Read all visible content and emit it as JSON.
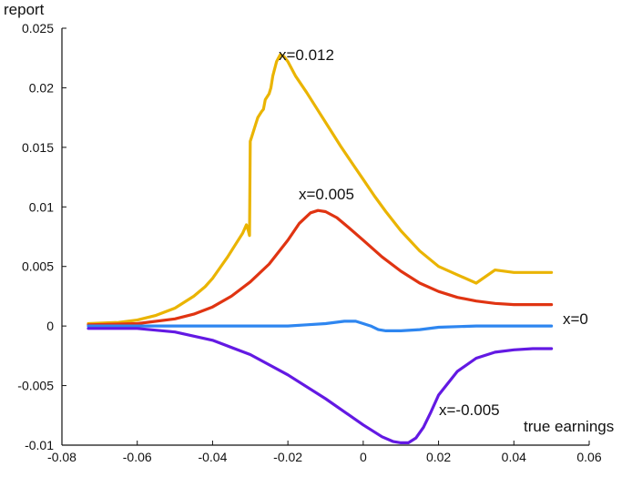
{
  "chart_data": {
    "type": "line",
    "title": "",
    "xlabel": "true earnings",
    "ylabel": "report",
    "xlim": [
      -0.08,
      0.06
    ],
    "ylim": [
      -0.01,
      0.025
    ],
    "xticks": [
      "-0.08",
      "-0.06",
      "-0.04",
      "-0.02",
      "0",
      "0.02",
      "0.04",
      "0.06"
    ],
    "yticks": [
      "-0.01",
      "-0.005",
      "0",
      "0.005",
      "0.01",
      "0.015",
      "0.02",
      "0.025"
    ],
    "grid": false,
    "legend": "none",
    "series": [
      {
        "name": "x=0.012",
        "color": "#EAB400",
        "x": [
          -0.073,
          -0.065,
          -0.06,
          -0.055,
          -0.05,
          -0.045,
          -0.042,
          -0.04,
          -0.038,
          -0.036,
          -0.034,
          -0.032,
          -0.031,
          -0.0305,
          -0.0302,
          -0.03,
          -0.0295,
          -0.0285,
          -0.028,
          -0.027,
          -0.0265,
          -0.026,
          -0.025,
          -0.0245,
          -0.024,
          -0.023,
          -0.022,
          -0.021,
          -0.02,
          -0.018,
          -0.015,
          -0.012,
          -0.009,
          -0.006,
          -0.003,
          0.0,
          0.003,
          0.006,
          0.01,
          0.015,
          0.02,
          0.025,
          0.03,
          0.035,
          0.04,
          0.045,
          0.05
        ],
        "y": [
          0.0002,
          0.0003,
          0.0005,
          0.0009,
          0.0015,
          0.0025,
          0.0033,
          0.004,
          0.0049,
          0.0058,
          0.0068,
          0.0078,
          0.0085,
          0.008,
          0.0076,
          0.0155,
          0.016,
          0.017,
          0.0175,
          0.018,
          0.0182,
          0.019,
          0.0195,
          0.02,
          0.021,
          0.0222,
          0.0228,
          0.0226,
          0.0222,
          0.021,
          0.0196,
          0.0181,
          0.0166,
          0.0151,
          0.0137,
          0.0123,
          0.0109,
          0.0096,
          0.008,
          0.0063,
          0.005,
          0.0043,
          0.0036,
          0.0047,
          0.0045,
          0.0045,
          0.0045
        ]
      },
      {
        "name": "x=0.005",
        "color": "#E03412",
        "x": [
          -0.073,
          -0.06,
          -0.05,
          -0.045,
          -0.04,
          -0.035,
          -0.03,
          -0.025,
          -0.02,
          -0.017,
          -0.014,
          -0.012,
          -0.01,
          -0.007,
          -0.004,
          0.0,
          0.005,
          0.01,
          0.015,
          0.02,
          0.025,
          0.03,
          0.035,
          0.04,
          0.045,
          0.05
        ],
        "y": [
          0.0001,
          0.0002,
          0.0006,
          0.001,
          0.0016,
          0.0025,
          0.0037,
          0.0052,
          0.0072,
          0.0086,
          0.0095,
          0.0097,
          0.0096,
          0.0091,
          0.0083,
          0.0072,
          0.0058,
          0.0046,
          0.0036,
          0.0029,
          0.0024,
          0.0021,
          0.0019,
          0.0018,
          0.0018,
          0.0018
        ]
      },
      {
        "name": "x=0",
        "color": "#2E86F0",
        "x": [
          -0.073,
          -0.06,
          -0.04,
          -0.02,
          -0.015,
          -0.01,
          -0.005,
          -0.002,
          0.0,
          0.002,
          0.004,
          0.006,
          0.01,
          0.015,
          0.02,
          0.03,
          0.04,
          0.05
        ],
        "y": [
          0.0,
          0.0,
          0.0,
          0.0,
          0.0001,
          0.0002,
          0.0004,
          0.0004,
          0.0002,
          0.0,
          -0.0003,
          -0.0004,
          -0.0004,
          -0.0003,
          -0.0001,
          0.0,
          0.0,
          0.0
        ]
      },
      {
        "name": "x=-0.005",
        "color": "#6319E3",
        "x": [
          -0.073,
          -0.06,
          -0.05,
          -0.04,
          -0.03,
          -0.02,
          -0.01,
          0.0,
          0.005,
          0.008,
          0.01,
          0.012,
          0.014,
          0.016,
          0.018,
          0.02,
          0.025,
          0.03,
          0.035,
          0.04,
          0.045,
          0.05
        ],
        "y": [
          -0.0002,
          -0.0002,
          -0.0005,
          -0.0012,
          -0.0024,
          -0.0041,
          -0.0061,
          -0.0083,
          -0.0093,
          -0.0097,
          -0.0098,
          -0.0098,
          -0.0094,
          -0.0085,
          -0.0072,
          -0.0058,
          -0.0038,
          -0.0027,
          -0.0022,
          -0.002,
          -0.0019,
          -0.0019
        ]
      }
    ],
    "annotations": [
      {
        "text": "x=0.012",
        "series": 0
      },
      {
        "text": "x=0.005",
        "series": 1
      },
      {
        "text": "x=0",
        "series": 2
      },
      {
        "text": "x=-0.005",
        "series": 3
      }
    ]
  }
}
